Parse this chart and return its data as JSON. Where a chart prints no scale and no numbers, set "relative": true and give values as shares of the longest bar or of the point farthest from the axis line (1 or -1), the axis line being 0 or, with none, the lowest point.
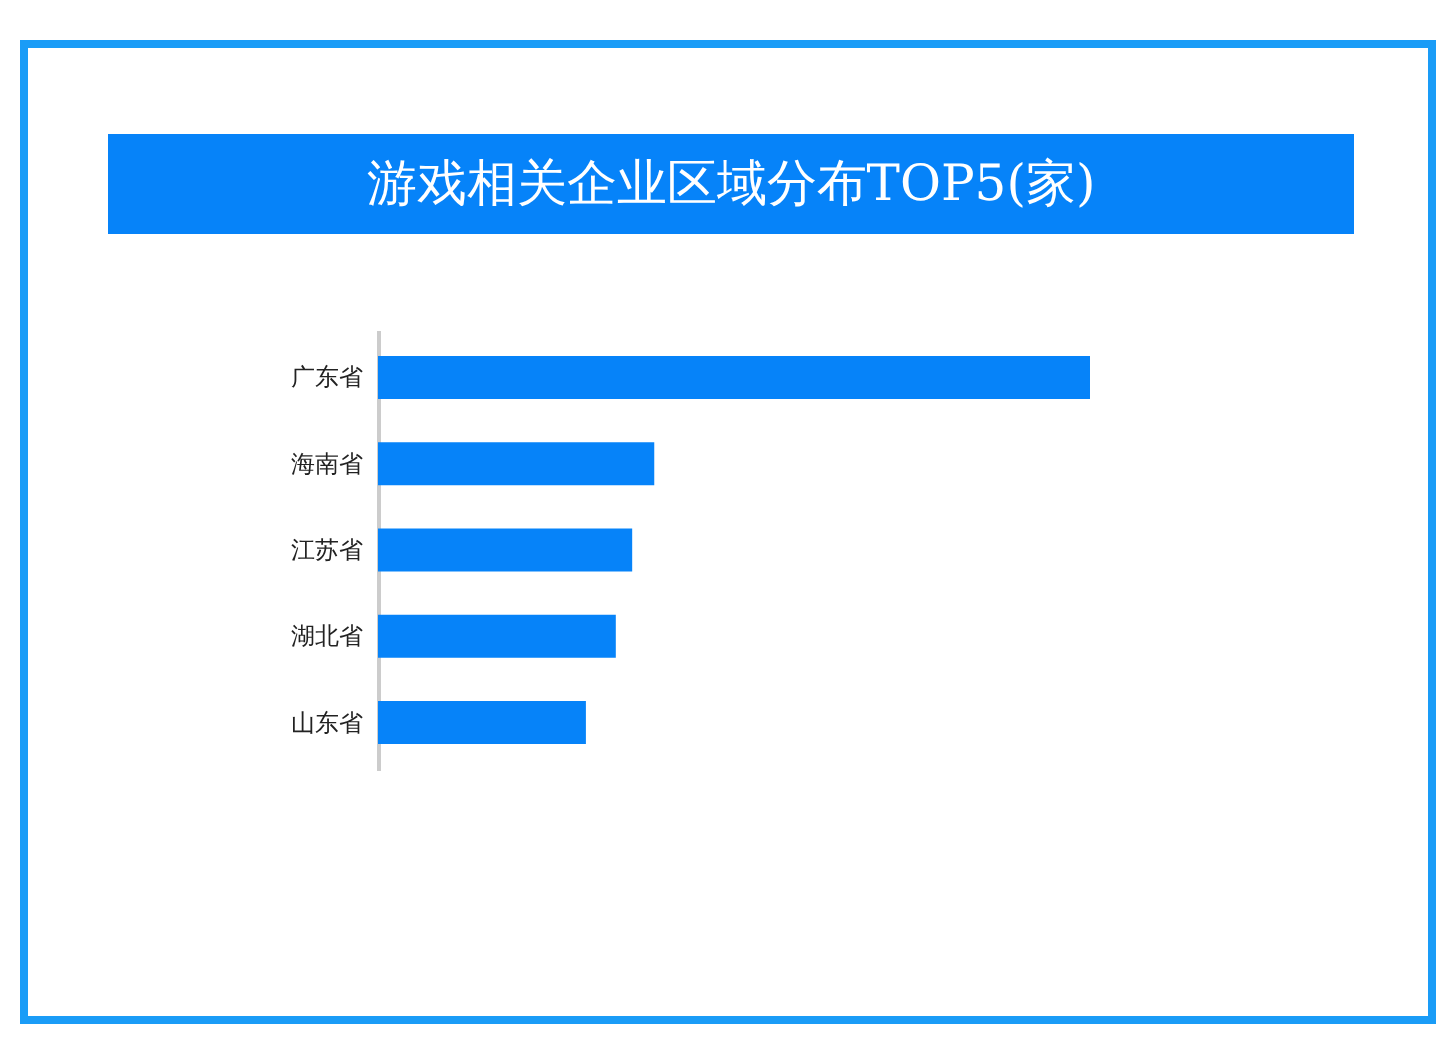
{
  "chart_data": {
    "type": "bar",
    "orientation": "horizontal",
    "relative": true,
    "title": "游戏相关企业区域分布TOP5(家)",
    "categories": [
      "广东省",
      "海南省",
      "江苏省",
      "湖北省",
      "山东省"
    ],
    "values": [
      1,
      0.388,
      0.357,
      0.334,
      0.292
    ],
    "color": "#0683f9"
  }
}
